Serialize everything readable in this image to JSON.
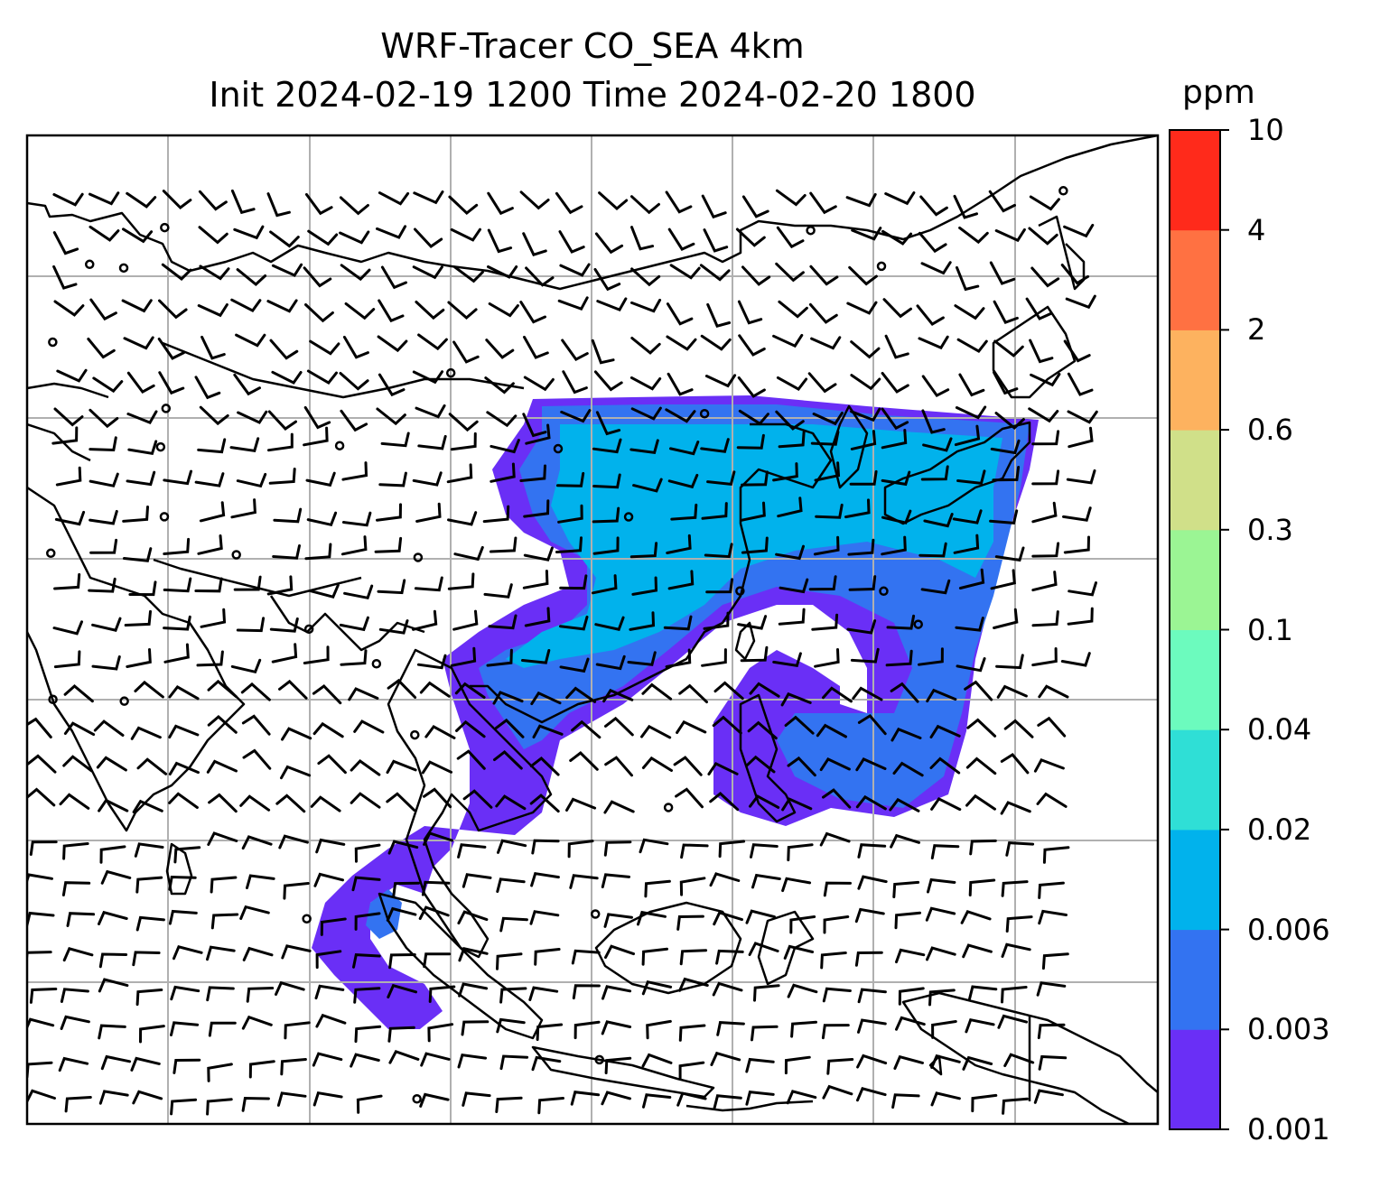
{
  "title": {
    "line1": "WRF-Tracer CO_SEA 4km",
    "line2": "Init 2024-02-19 1200 Time 2024-02-20 1800"
  },
  "colorbar": {
    "unit": "ppm",
    "levels": [
      "0.001",
      "0.003",
      "0.006",
      "0.02",
      "0.04",
      "0.1",
      "0.3",
      "0.6",
      "2",
      "4",
      "10"
    ],
    "colors": [
      "#6a2ff6",
      "#3373f1",
      "#01b2ec",
      "#2fdfd6",
      "#6cfbbe",
      "#9bf594",
      "#d0e089",
      "#fdb25f",
      "#ff7142",
      "#ff2a1b"
    ]
  },
  "map": {
    "ocean_color": "#ffffff",
    "grid_color": "#b0b0b0",
    "coast_color": "#000000",
    "wind_barbs": true,
    "gridlines": true
  }
}
